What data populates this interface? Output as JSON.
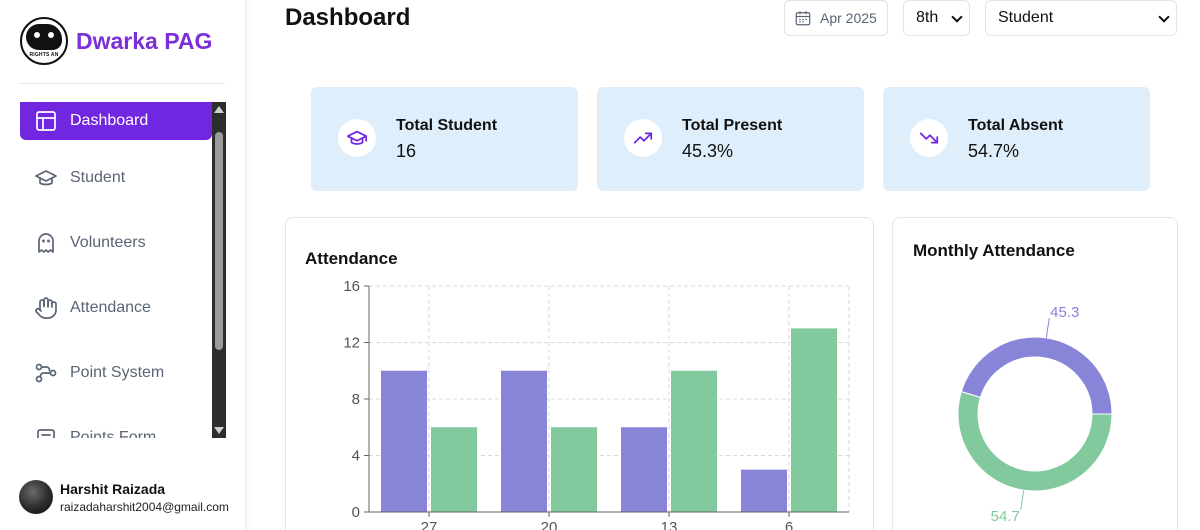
{
  "brand": {
    "name": "Dwarka PAG",
    "logo_text": "RIGHTS AN"
  },
  "sidebar": {
    "items": [
      {
        "label": "Dashboard",
        "icon": "layout-icon",
        "active": true
      },
      {
        "label": "Student",
        "icon": "graduation-cap-icon"
      },
      {
        "label": "Volunteers",
        "icon": "ghost-icon"
      },
      {
        "label": "Attendance",
        "icon": "hand-icon"
      },
      {
        "label": "Point System",
        "icon": "workflow-icon"
      },
      {
        "label": "Points Form",
        "icon": "form-icon"
      }
    ]
  },
  "user": {
    "name": "Harshit Raizada",
    "email": "raizadaharshit2004@gmail.com"
  },
  "header": {
    "title": "Dashboard",
    "date": "Apr 2025",
    "grade": "8th",
    "role": "Student"
  },
  "stats": [
    {
      "title": "Total Student",
      "value": "16",
      "icon": "graduation-cap-icon"
    },
    {
      "title": "Total Present",
      "value": "45.3%",
      "icon": "trending-up-icon"
    },
    {
      "title": "Total Absent",
      "value": "54.7%",
      "icon": "trending-down-icon"
    }
  ],
  "attendance_chart": {
    "title": "Attendance",
    "chart_data": {
      "type": "bar",
      "categories": [
        "27",
        "20",
        "13",
        "6"
      ],
      "series": [
        {
          "values": [
            10,
            10,
            6,
            3
          ],
          "color": "#8884d8"
        },
        {
          "values": [
            6,
            6,
            10,
            13
          ],
          "color": "#82ca9d"
        }
      ],
      "yticks": [
        "0",
        "4",
        "8",
        "12",
        "16"
      ],
      "ylim": [
        0,
        16
      ],
      "grid": true
    }
  },
  "monthly_chart": {
    "title": "Monthly Attendance",
    "chart_data": {
      "type": "pie",
      "values": [
        45.3,
        54.7
      ],
      "labels": [
        "45.3",
        "54.7"
      ],
      "colors": [
        "#8884d8",
        "#82ca9d"
      ]
    }
  },
  "colors": {
    "accent": "#7126e0",
    "brand": "#7b2fd9",
    "card_bg": "#dfeefb"
  }
}
